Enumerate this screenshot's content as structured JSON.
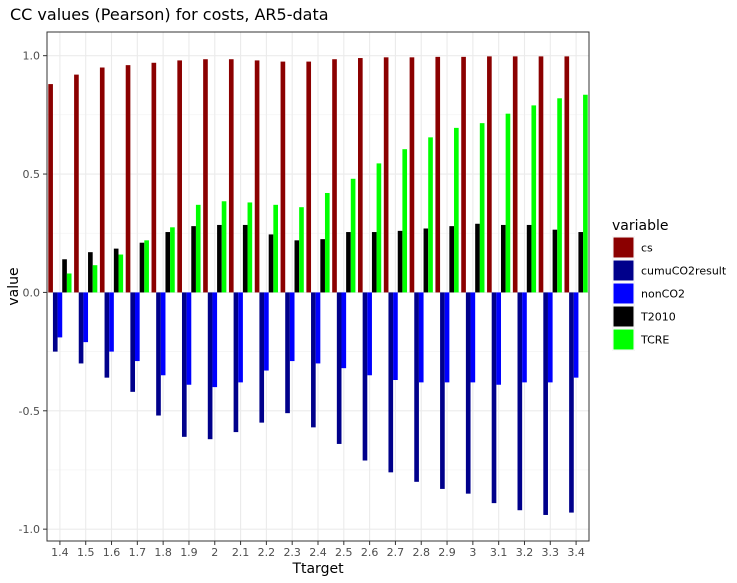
{
  "chart_data": {
    "type": "bar",
    "title": "CC values (Pearson) for costs, AR5-data",
    "xlabel": "Ttarget",
    "ylabel": "value",
    "ylim": [
      -1.05,
      1.1
    ],
    "yticks": [
      "-1.0",
      "-0.5",
      "0.0",
      "0.5",
      "1.0"
    ],
    "grid": true,
    "legend_title": "variable",
    "legend_position": "right",
    "categories": [
      "1.4",
      "1.5",
      "1.6",
      "1.7",
      "1.8",
      "1.9",
      "2",
      "2.1",
      "2.2",
      "2.3",
      "2.4",
      "2.5",
      "2.6",
      "2.7",
      "2.8",
      "2.9",
      "3",
      "3.1",
      "3.2",
      "3.3",
      "3.4"
    ],
    "series": [
      {
        "name": "cs",
        "color": "#8b0000",
        "values": [
          0.88,
          0.92,
          0.95,
          0.96,
          0.97,
          0.98,
          0.985,
          0.985,
          0.98,
          0.975,
          0.975,
          0.985,
          0.99,
          0.993,
          0.993,
          0.995,
          0.995,
          0.997,
          0.997,
          0.997,
          0.997
        ]
      },
      {
        "name": "cumuCO2result",
        "color": "#00008b",
        "values": [
          -0.25,
          -0.3,
          -0.36,
          -0.42,
          -0.52,
          -0.61,
          -0.62,
          -0.59,
          -0.55,
          -0.51,
          -0.57,
          -0.64,
          -0.71,
          -0.76,
          -0.8,
          -0.83,
          -0.85,
          -0.89,
          -0.92,
          -0.94,
          -0.93
        ]
      },
      {
        "name": "nonCO2",
        "color": "#0000ff",
        "values": [
          -0.19,
          -0.21,
          -0.25,
          -0.29,
          -0.35,
          -0.39,
          -0.4,
          -0.38,
          -0.33,
          -0.29,
          -0.3,
          -0.32,
          -0.35,
          -0.37,
          -0.38,
          -0.38,
          -0.38,
          -0.39,
          -0.38,
          -0.38,
          -0.36
        ]
      },
      {
        "name": "T2010",
        "color": "#000000",
        "values": [
          0.14,
          0.17,
          0.185,
          0.21,
          0.255,
          0.28,
          0.285,
          0.285,
          0.245,
          0.22,
          0.225,
          0.255,
          0.255,
          0.26,
          0.27,
          0.28,
          0.29,
          0.285,
          0.285,
          0.265,
          0.255
        ]
      },
      {
        "name": "TCRE",
        "color": "#00ff00",
        "values": [
          0.08,
          0.115,
          0.16,
          0.22,
          0.275,
          0.37,
          0.385,
          0.38,
          0.37,
          0.36,
          0.42,
          0.48,
          0.545,
          0.605,
          0.655,
          0.695,
          0.715,
          0.755,
          0.79,
          0.82,
          0.835
        ]
      }
    ]
  }
}
